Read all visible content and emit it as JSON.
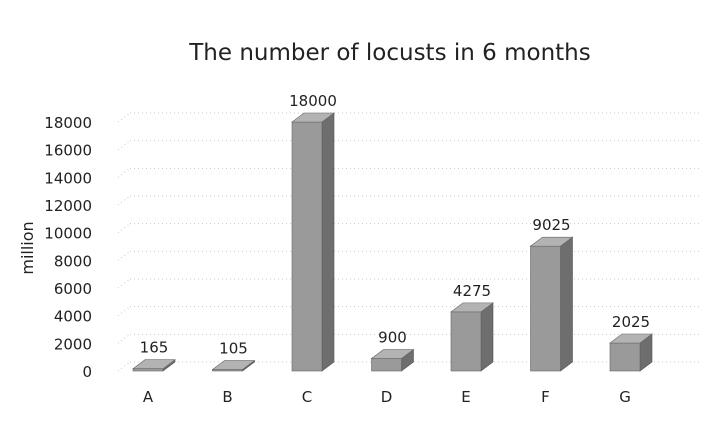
{
  "chart_data": {
    "type": "bar",
    "title": "The number of locusts in 6 months",
    "xlabel": "",
    "ylabel": "million",
    "categories": [
      "A",
      "B",
      "C",
      "D",
      "E",
      "F",
      "G"
    ],
    "values": [
      165,
      105,
      18000,
      900,
      4275,
      9025,
      2025
    ],
    "ylim": [
      0,
      18000
    ],
    "yticks": [
      0,
      2000,
      4000,
      6000,
      8000,
      10000,
      12000,
      14000,
      16000,
      18000
    ],
    "grid": true,
    "data_labels": true,
    "style": "3d-column",
    "bar_color": "#9a9a9a"
  }
}
